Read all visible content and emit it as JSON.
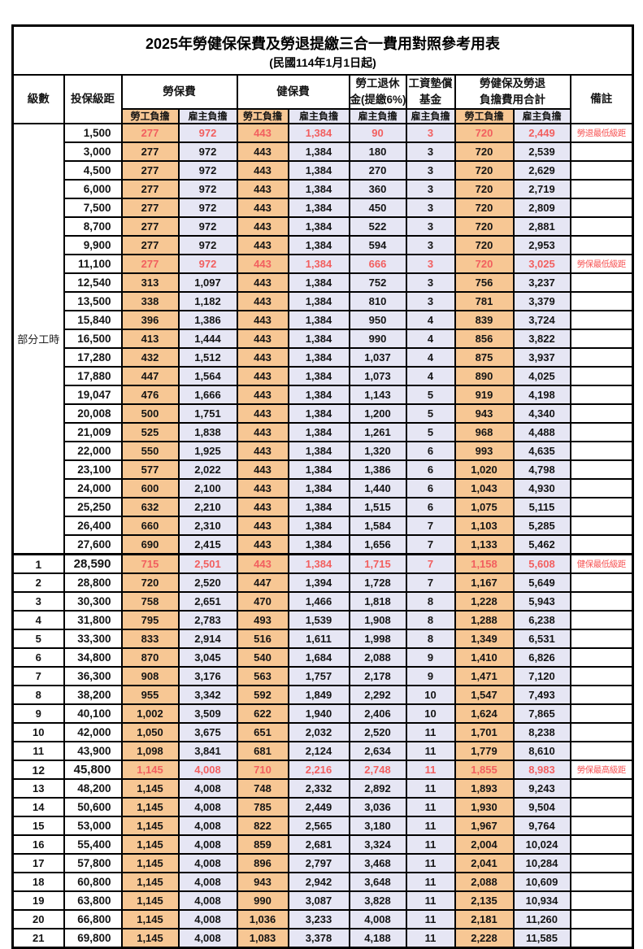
{
  "title": "2025年勞健保保費及勞退提繳三合一費用對照參考用表",
  "subtitle": "(民國114年1月1日起)",
  "colors": {
    "employee_bg": "#F7C794",
    "employer_bg": "#E6E6F4",
    "red_text": "#F25F5F",
    "border": "#000000",
    "background": "#FFFFFF"
  },
  "header": {
    "level": "級數",
    "bracket": "投保級距",
    "labor_insurance": "勞保費",
    "health_insurance": "健保費",
    "pension_line1": "勞工退休",
    "pension_line2": "金(提繳6%)",
    "wage_fund_line1": "工資墊償",
    "wage_fund_line2": "基金",
    "total_line1": "勞健保及勞退",
    "total_line2": "負擔費用合計",
    "remark": "備註",
    "employee": "勞工負擔",
    "employer": "雇主負擔"
  },
  "part_time_label": "部分工時",
  "value_col_classes": [
    "emp",
    "er",
    "emp",
    "er",
    "er",
    "er",
    "emp",
    "er"
  ],
  "rows": [
    {
      "level": "",
      "bracket": "1,500",
      "values": [
        "277",
        "972",
        "443",
        "1,384",
        "90",
        "3",
        "720",
        "2,449"
      ],
      "remark": "勞退最低級距",
      "red": true,
      "emph": false
    },
    {
      "level": "",
      "bracket": "3,000",
      "values": [
        "277",
        "972",
        "443",
        "1,384",
        "180",
        "3",
        "720",
        "2,539"
      ],
      "remark": "",
      "red": false,
      "emph": false
    },
    {
      "level": "",
      "bracket": "4,500",
      "values": [
        "277",
        "972",
        "443",
        "1,384",
        "270",
        "3",
        "720",
        "2,629"
      ],
      "remark": "",
      "red": false,
      "emph": false
    },
    {
      "level": "",
      "bracket": "6,000",
      "values": [
        "277",
        "972",
        "443",
        "1,384",
        "360",
        "3",
        "720",
        "2,719"
      ],
      "remark": "",
      "red": false,
      "emph": false
    },
    {
      "level": "",
      "bracket": "7,500",
      "values": [
        "277",
        "972",
        "443",
        "1,384",
        "450",
        "3",
        "720",
        "2,809"
      ],
      "remark": "",
      "red": false,
      "emph": false
    },
    {
      "level": "",
      "bracket": "8,700",
      "values": [
        "277",
        "972",
        "443",
        "1,384",
        "522",
        "3",
        "720",
        "2,881"
      ],
      "remark": "",
      "red": false,
      "emph": false
    },
    {
      "level": "",
      "bracket": "9,900",
      "values": [
        "277",
        "972",
        "443",
        "1,384",
        "594",
        "3",
        "720",
        "2,953"
      ],
      "remark": "",
      "red": false,
      "emph": false
    },
    {
      "level": "",
      "bracket": "11,100",
      "values": [
        "277",
        "972",
        "443",
        "1,384",
        "666",
        "3",
        "720",
        "3,025"
      ],
      "remark": "勞保最低級距",
      "red": true,
      "emph": false
    },
    {
      "level": "",
      "bracket": "12,540",
      "values": [
        "313",
        "1,097",
        "443",
        "1,384",
        "752",
        "3",
        "756",
        "3,237"
      ],
      "remark": "",
      "red": false,
      "emph": false
    },
    {
      "level": "",
      "bracket": "13,500",
      "values": [
        "338",
        "1,182",
        "443",
        "1,384",
        "810",
        "3",
        "781",
        "3,379"
      ],
      "remark": "",
      "red": false,
      "emph": false
    },
    {
      "level": "",
      "bracket": "15,840",
      "values": [
        "396",
        "1,386",
        "443",
        "1,384",
        "950",
        "4",
        "839",
        "3,724"
      ],
      "remark": "",
      "red": false,
      "emph": false
    },
    {
      "level": "",
      "bracket": "16,500",
      "values": [
        "413",
        "1,444",
        "443",
        "1,384",
        "990",
        "4",
        "856",
        "3,822"
      ],
      "remark": "",
      "red": false,
      "emph": false
    },
    {
      "level": "",
      "bracket": "17,280",
      "values": [
        "432",
        "1,512",
        "443",
        "1,384",
        "1,037",
        "4",
        "875",
        "3,937"
      ],
      "remark": "",
      "red": false,
      "emph": false
    },
    {
      "level": "",
      "bracket": "17,880",
      "values": [
        "447",
        "1,564",
        "443",
        "1,384",
        "1,073",
        "4",
        "890",
        "4,025"
      ],
      "remark": "",
      "red": false,
      "emph": false
    },
    {
      "level": "",
      "bracket": "19,047",
      "values": [
        "476",
        "1,666",
        "443",
        "1,384",
        "1,143",
        "5",
        "919",
        "4,198"
      ],
      "remark": "",
      "red": false,
      "emph": false
    },
    {
      "level": "",
      "bracket": "20,008",
      "values": [
        "500",
        "1,751",
        "443",
        "1,384",
        "1,200",
        "5",
        "943",
        "4,340"
      ],
      "remark": "",
      "red": false,
      "emph": false
    },
    {
      "level": "",
      "bracket": "21,009",
      "values": [
        "525",
        "1,838",
        "443",
        "1,384",
        "1,261",
        "5",
        "968",
        "4,488"
      ],
      "remark": "",
      "red": false,
      "emph": false
    },
    {
      "level": "",
      "bracket": "22,000",
      "values": [
        "550",
        "1,925",
        "443",
        "1,384",
        "1,320",
        "6",
        "993",
        "4,635"
      ],
      "remark": "",
      "red": false,
      "emph": false
    },
    {
      "level": "",
      "bracket": "23,100",
      "values": [
        "577",
        "2,022",
        "443",
        "1,384",
        "1,386",
        "6",
        "1,020",
        "4,798"
      ],
      "remark": "",
      "red": false,
      "emph": false
    },
    {
      "level": "",
      "bracket": "24,000",
      "values": [
        "600",
        "2,100",
        "443",
        "1,384",
        "1,440",
        "6",
        "1,043",
        "4,930"
      ],
      "remark": "",
      "red": false,
      "emph": false
    },
    {
      "level": "",
      "bracket": "25,250",
      "values": [
        "632",
        "2,210",
        "443",
        "1,384",
        "1,515",
        "6",
        "1,075",
        "5,115"
      ],
      "remark": "",
      "red": false,
      "emph": false
    },
    {
      "level": "",
      "bracket": "26,400",
      "values": [
        "660",
        "2,310",
        "443",
        "1,384",
        "1,584",
        "7",
        "1,103",
        "5,285"
      ],
      "remark": "",
      "red": false,
      "emph": false
    },
    {
      "level": "",
      "bracket": "27,600",
      "values": [
        "690",
        "2,415",
        "443",
        "1,384",
        "1,656",
        "7",
        "1,133",
        "5,462"
      ],
      "remark": "",
      "red": false,
      "emph": false
    },
    {
      "level": "1",
      "bracket": "28,590",
      "values": [
        "715",
        "2,501",
        "443",
        "1,384",
        "1,715",
        "7",
        "1,158",
        "5,608"
      ],
      "remark": "健保最低級距",
      "red": true,
      "emph": true
    },
    {
      "level": "2",
      "bracket": "28,800",
      "values": [
        "720",
        "2,520",
        "447",
        "1,394",
        "1,728",
        "7",
        "1,167",
        "5,649"
      ],
      "remark": "",
      "red": false,
      "emph": false
    },
    {
      "level": "3",
      "bracket": "30,300",
      "values": [
        "758",
        "2,651",
        "470",
        "1,466",
        "1,818",
        "8",
        "1,228",
        "5,943"
      ],
      "remark": "",
      "red": false,
      "emph": false
    },
    {
      "level": "4",
      "bracket": "31,800",
      "values": [
        "795",
        "2,783",
        "493",
        "1,539",
        "1,908",
        "8",
        "1,288",
        "6,238"
      ],
      "remark": "",
      "red": false,
      "emph": false
    },
    {
      "level": "5",
      "bracket": "33,300",
      "values": [
        "833",
        "2,914",
        "516",
        "1,611",
        "1,998",
        "8",
        "1,349",
        "6,531"
      ],
      "remark": "",
      "red": false,
      "emph": false
    },
    {
      "level": "6",
      "bracket": "34,800",
      "values": [
        "870",
        "3,045",
        "540",
        "1,684",
        "2,088",
        "9",
        "1,410",
        "6,826"
      ],
      "remark": "",
      "red": false,
      "emph": false
    },
    {
      "level": "7",
      "bracket": "36,300",
      "values": [
        "908",
        "3,176",
        "563",
        "1,757",
        "2,178",
        "9",
        "1,471",
        "7,120"
      ],
      "remark": "",
      "red": false,
      "emph": false
    },
    {
      "level": "8",
      "bracket": "38,200",
      "values": [
        "955",
        "3,342",
        "592",
        "1,849",
        "2,292",
        "10",
        "1,547",
        "7,493"
      ],
      "remark": "",
      "red": false,
      "emph": false
    },
    {
      "level": "9",
      "bracket": "40,100",
      "values": [
        "1,002",
        "3,509",
        "622",
        "1,940",
        "2,406",
        "10",
        "1,624",
        "7,865"
      ],
      "remark": "",
      "red": false,
      "emph": false
    },
    {
      "level": "10",
      "bracket": "42,000",
      "values": [
        "1,050",
        "3,675",
        "651",
        "2,032",
        "2,520",
        "11",
        "1,701",
        "8,238"
      ],
      "remark": "",
      "red": false,
      "emph": false
    },
    {
      "level": "11",
      "bracket": "43,900",
      "values": [
        "1,098",
        "3,841",
        "681",
        "2,124",
        "2,634",
        "11",
        "1,779",
        "8,610"
      ],
      "remark": "",
      "red": false,
      "emph": false
    },
    {
      "level": "12",
      "bracket": "45,800",
      "values": [
        "1,145",
        "4,008",
        "710",
        "2,216",
        "2,748",
        "11",
        "1,855",
        "8,983"
      ],
      "remark": "勞保最高級距",
      "red": true,
      "emph": true
    },
    {
      "level": "13",
      "bracket": "48,200",
      "values": [
        "1,145",
        "4,008",
        "748",
        "2,332",
        "2,892",
        "11",
        "1,893",
        "9,243"
      ],
      "remark": "",
      "red": false,
      "emph": false
    },
    {
      "level": "14",
      "bracket": "50,600",
      "values": [
        "1,145",
        "4,008",
        "785",
        "2,449",
        "3,036",
        "11",
        "1,930",
        "9,504"
      ],
      "remark": "",
      "red": false,
      "emph": false
    },
    {
      "level": "15",
      "bracket": "53,000",
      "values": [
        "1,145",
        "4,008",
        "822",
        "2,565",
        "3,180",
        "11",
        "1,967",
        "9,764"
      ],
      "remark": "",
      "red": false,
      "emph": false
    },
    {
      "level": "16",
      "bracket": "55,400",
      "values": [
        "1,145",
        "4,008",
        "859",
        "2,681",
        "3,324",
        "11",
        "2,004",
        "10,024"
      ],
      "remark": "",
      "red": false,
      "emph": false
    },
    {
      "level": "17",
      "bracket": "57,800",
      "values": [
        "1,145",
        "4,008",
        "896",
        "2,797",
        "3,468",
        "11",
        "2,041",
        "10,284"
      ],
      "remark": "",
      "red": false,
      "emph": false
    },
    {
      "level": "18",
      "bracket": "60,800",
      "values": [
        "1,145",
        "4,008",
        "943",
        "2,942",
        "3,648",
        "11",
        "2,088",
        "10,609"
      ],
      "remark": "",
      "red": false,
      "emph": false
    },
    {
      "level": "19",
      "bracket": "63,800",
      "values": [
        "1,145",
        "4,008",
        "990",
        "3,087",
        "3,828",
        "11",
        "2,135",
        "10,934"
      ],
      "remark": "",
      "red": false,
      "emph": false
    },
    {
      "level": "20",
      "bracket": "66,800",
      "values": [
        "1,145",
        "4,008",
        "1,036",
        "3,233",
        "4,008",
        "11",
        "2,181",
        "11,260"
      ],
      "remark": "",
      "red": false,
      "emph": false
    },
    {
      "level": "21",
      "bracket": "69,800",
      "values": [
        "1,145",
        "4,008",
        "1,083",
        "3,378",
        "4,188",
        "11",
        "2,228",
        "11,585"
      ],
      "remark": "",
      "red": false,
      "emph": false
    }
  ]
}
